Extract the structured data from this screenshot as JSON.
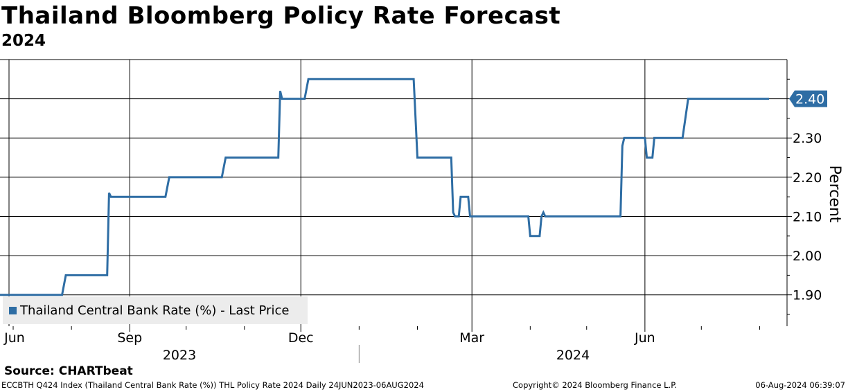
{
  "chart_data": {
    "type": "line",
    "title": "Thailand Bloomberg Policy Rate Forecast",
    "subtitle": "2024",
    "ylabel": "Percent",
    "xlabel": "",
    "ylim": [
      1.82,
      2.5
    ],
    "yticks": [
      1.9,
      2.0,
      2.1,
      2.2,
      2.3,
      2.4
    ],
    "ytick_labels": [
      "1.90",
      "2.00",
      "2.10",
      "2.20",
      "2.30",
      "2.40"
    ],
    "x_month_labels": [
      "Jun",
      "Sep",
      "Dec",
      "Mar",
      "Jun"
    ],
    "x_year_labels": [
      "2023",
      "2024"
    ],
    "last_value_label": "2.40",
    "legend_position": "bottom-left",
    "series": [
      {
        "name": "Thailand Central Bank Rate (%) - Last Price",
        "color": "#2e6da4",
        "x": [
          "2023-06-24",
          "2023-07-27",
          "2023-07-29",
          "2023-08-20",
          "2023-08-21",
          "2023-08-22",
          "2023-09-20",
          "2023-09-22",
          "2023-10-20",
          "2023-10-22",
          "2023-11-19",
          "2023-11-20",
          "2023-11-21",
          "2023-11-22",
          "2023-12-03",
          "2023-12-05",
          "2024-01-30",
          "2024-02-01",
          "2024-02-19",
          "2024-02-20",
          "2024-02-21",
          "2024-02-23",
          "2024-02-24",
          "2024-02-28",
          "2024-02-29",
          "2024-03-31",
          "2024-04-01",
          "2024-04-06",
          "2024-04-07",
          "2024-04-08",
          "2024-04-09",
          "2024-05-19",
          "2024-05-20",
          "2024-05-21",
          "2024-06-01",
          "2024-06-02",
          "2024-06-05",
          "2024-06-06",
          "2024-06-21",
          "2024-06-24",
          "2024-08-06"
        ],
        "values": [
          1.9,
          1.9,
          1.95,
          1.95,
          2.16,
          2.15,
          2.15,
          2.2,
          2.2,
          2.25,
          2.25,
          2.42,
          2.4,
          2.4,
          2.4,
          2.45,
          2.45,
          2.25,
          2.25,
          2.11,
          2.1,
          2.1,
          2.15,
          2.15,
          2.1,
          2.1,
          2.05,
          2.05,
          2.1,
          2.11,
          2.1,
          2.1,
          2.28,
          2.3,
          2.3,
          2.25,
          2.25,
          2.3,
          2.3,
          2.4,
          2.4
        ]
      }
    ]
  },
  "footer": {
    "source": "Source: CHARTbeat",
    "index_info": "ECCBTH Q424 Index (Thailand Central Bank Rate (%)) THL Policy Rate 2024  Daily 24JUN2023-06AUG2024",
    "copyright": "Copyright© 2024 Bloomberg Finance L.P.",
    "timestamp": "06-Aug-2024 06:39:07"
  },
  "colors": {
    "line": "#2e6da4",
    "grid": "#000000",
    "background": "#ffffff"
  }
}
